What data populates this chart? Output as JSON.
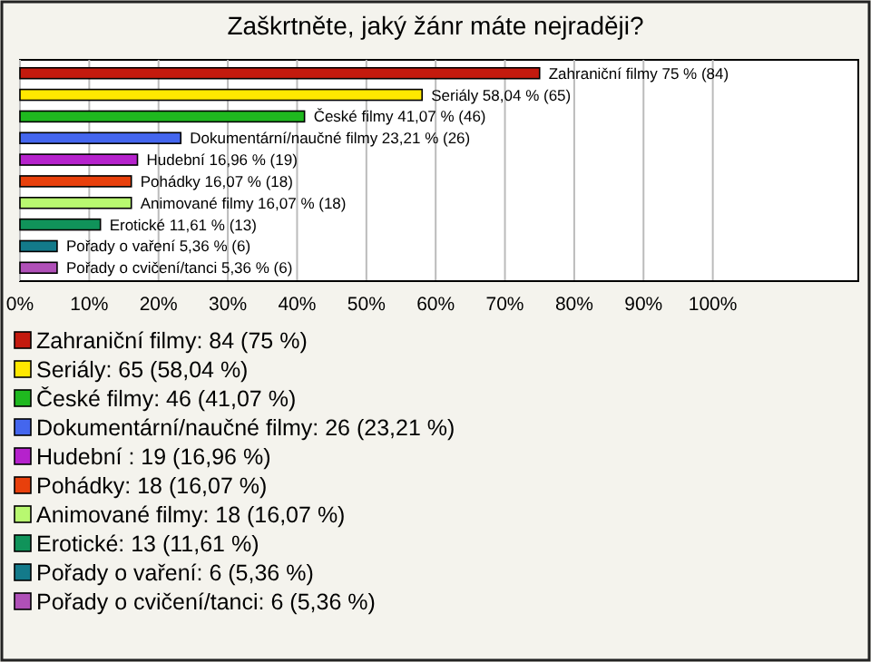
{
  "chart_data": {
    "type": "bar",
    "orientation": "horizontal",
    "title": "Zaškrtněte, jaký žánr máte nejraději?",
    "categories": [
      null,
      null,
      null,
      null,
      null,
      null,
      null,
      null,
      null,
      null
    ],
    "series": [
      {
        "name": "Zahraniční filmy: 84 (75 %)",
        "color": "#c41a0e",
        "values": [
          75,
          null,
          null,
          null,
          null,
          null,
          null,
          null,
          null,
          null
        ],
        "value_labels": [
          "Zahraniční filmy 75 % (84)",
          null,
          null,
          null,
          null,
          null,
          null,
          null,
          null,
          null
        ]
      },
      {
        "name": "Seriály: 65 (58,04 %)",
        "color": "#ffe800",
        "values": [
          null,
          58.04,
          null,
          null,
          null,
          null,
          null,
          null,
          null,
          null
        ],
        "value_labels": [
          null,
          "Seriály 58,04 % (65)",
          null,
          null,
          null,
          null,
          null,
          null,
          null,
          null
        ]
      },
      {
        "name": "České filmy: 46 (41,07 %)",
        "color": "#1fb81f",
        "values": [
          null,
          null,
          41.07,
          null,
          null,
          null,
          null,
          null,
          null,
          null
        ],
        "value_labels": [
          null,
          null,
          "České filmy 41,07 % (46)",
          null,
          null,
          null,
          null,
          null,
          null,
          null
        ]
      },
      {
        "name": "Dokumentární/naučné filmy: 26 (23,21 %)",
        "color": "#4466ee",
        "values": [
          null,
          null,
          null,
          23.21,
          null,
          null,
          null,
          null,
          null,
          null
        ],
        "value_labels": [
          null,
          null,
          null,
          "Dokumentární/naučné filmy 23,21 % (26)",
          null,
          null,
          null,
          null,
          null,
          null
        ]
      },
      {
        "name": "Hudební : 19 (16,96 %)",
        "color": "#b522cc",
        "values": [
          null,
          null,
          null,
          null,
          16.96,
          null,
          null,
          null,
          null,
          null
        ],
        "value_labels": [
          null,
          null,
          null,
          null,
          "Hudební  16,96 % (19)",
          null,
          null,
          null,
          null,
          null
        ]
      },
      {
        "name": "Pohádky: 18 (16,07 %)",
        "color": "#e8400c",
        "values": [
          null,
          null,
          null,
          null,
          null,
          16.07,
          null,
          null,
          null,
          null
        ],
        "value_labels": [
          null,
          null,
          null,
          null,
          null,
          "Pohádky 16,07 % (18)",
          null,
          null,
          null,
          null
        ]
      },
      {
        "name": "Animované filmy: 18 (16,07 %)",
        "color": "#b8f870",
        "values": [
          null,
          null,
          null,
          null,
          null,
          null,
          16.07,
          null,
          null,
          null
        ],
        "value_labels": [
          null,
          null,
          null,
          null,
          null,
          null,
          "Animované filmy 16,07 % (18)",
          null,
          null,
          null
        ]
      },
      {
        "name": "Erotické: 13 (11,61 %)",
        "color": "#10935a",
        "values": [
          null,
          null,
          null,
          null,
          null,
          null,
          null,
          11.61,
          null,
          null
        ],
        "value_labels": [
          null,
          null,
          null,
          null,
          null,
          null,
          null,
          "Erotické 11,61 % (13)",
          null,
          null
        ]
      },
      {
        "name": "Pořady o vaření: 6 (5,36 %)",
        "color": "#137a8a",
        "values": [
          null,
          null,
          null,
          null,
          null,
          null,
          null,
          null,
          5.36,
          null
        ],
        "value_labels": [
          null,
          null,
          null,
          null,
          null,
          null,
          null,
          null,
          "Pořady o vaření 5,36 % (6)",
          null
        ]
      },
      {
        "name": "Pořady o cvičení/tanci: 6 (5,36 %)",
        "color": "#b050b8",
        "values": [
          null,
          null,
          null,
          null,
          null,
          null,
          null,
          null,
          null,
          5.36
        ],
        "value_labels": [
          null,
          null,
          null,
          null,
          null,
          null,
          null,
          null,
          null,
          "Pořady o cvičení/tanci 5,36 % (6)"
        ]
      }
    ],
    "xlim": [
      0,
      121
    ],
    "xticks": [
      {
        "value": 0,
        "label": "0%"
      },
      {
        "value": 10,
        "label": "10%"
      },
      {
        "value": 20,
        "label": "20%"
      },
      {
        "value": 30,
        "label": "30%"
      },
      {
        "value": 40,
        "label": "40%"
      },
      {
        "value": 50,
        "label": "50%"
      },
      {
        "value": 60,
        "label": "60%"
      },
      {
        "value": 70,
        "label": "70%"
      },
      {
        "value": 80,
        "label": "80%"
      },
      {
        "value": 90,
        "label": "90%"
      },
      {
        "value": 100,
        "label": "100%"
      }
    ],
    "grid": "x",
    "tick_labels": "x",
    "legend": "bottom"
  }
}
